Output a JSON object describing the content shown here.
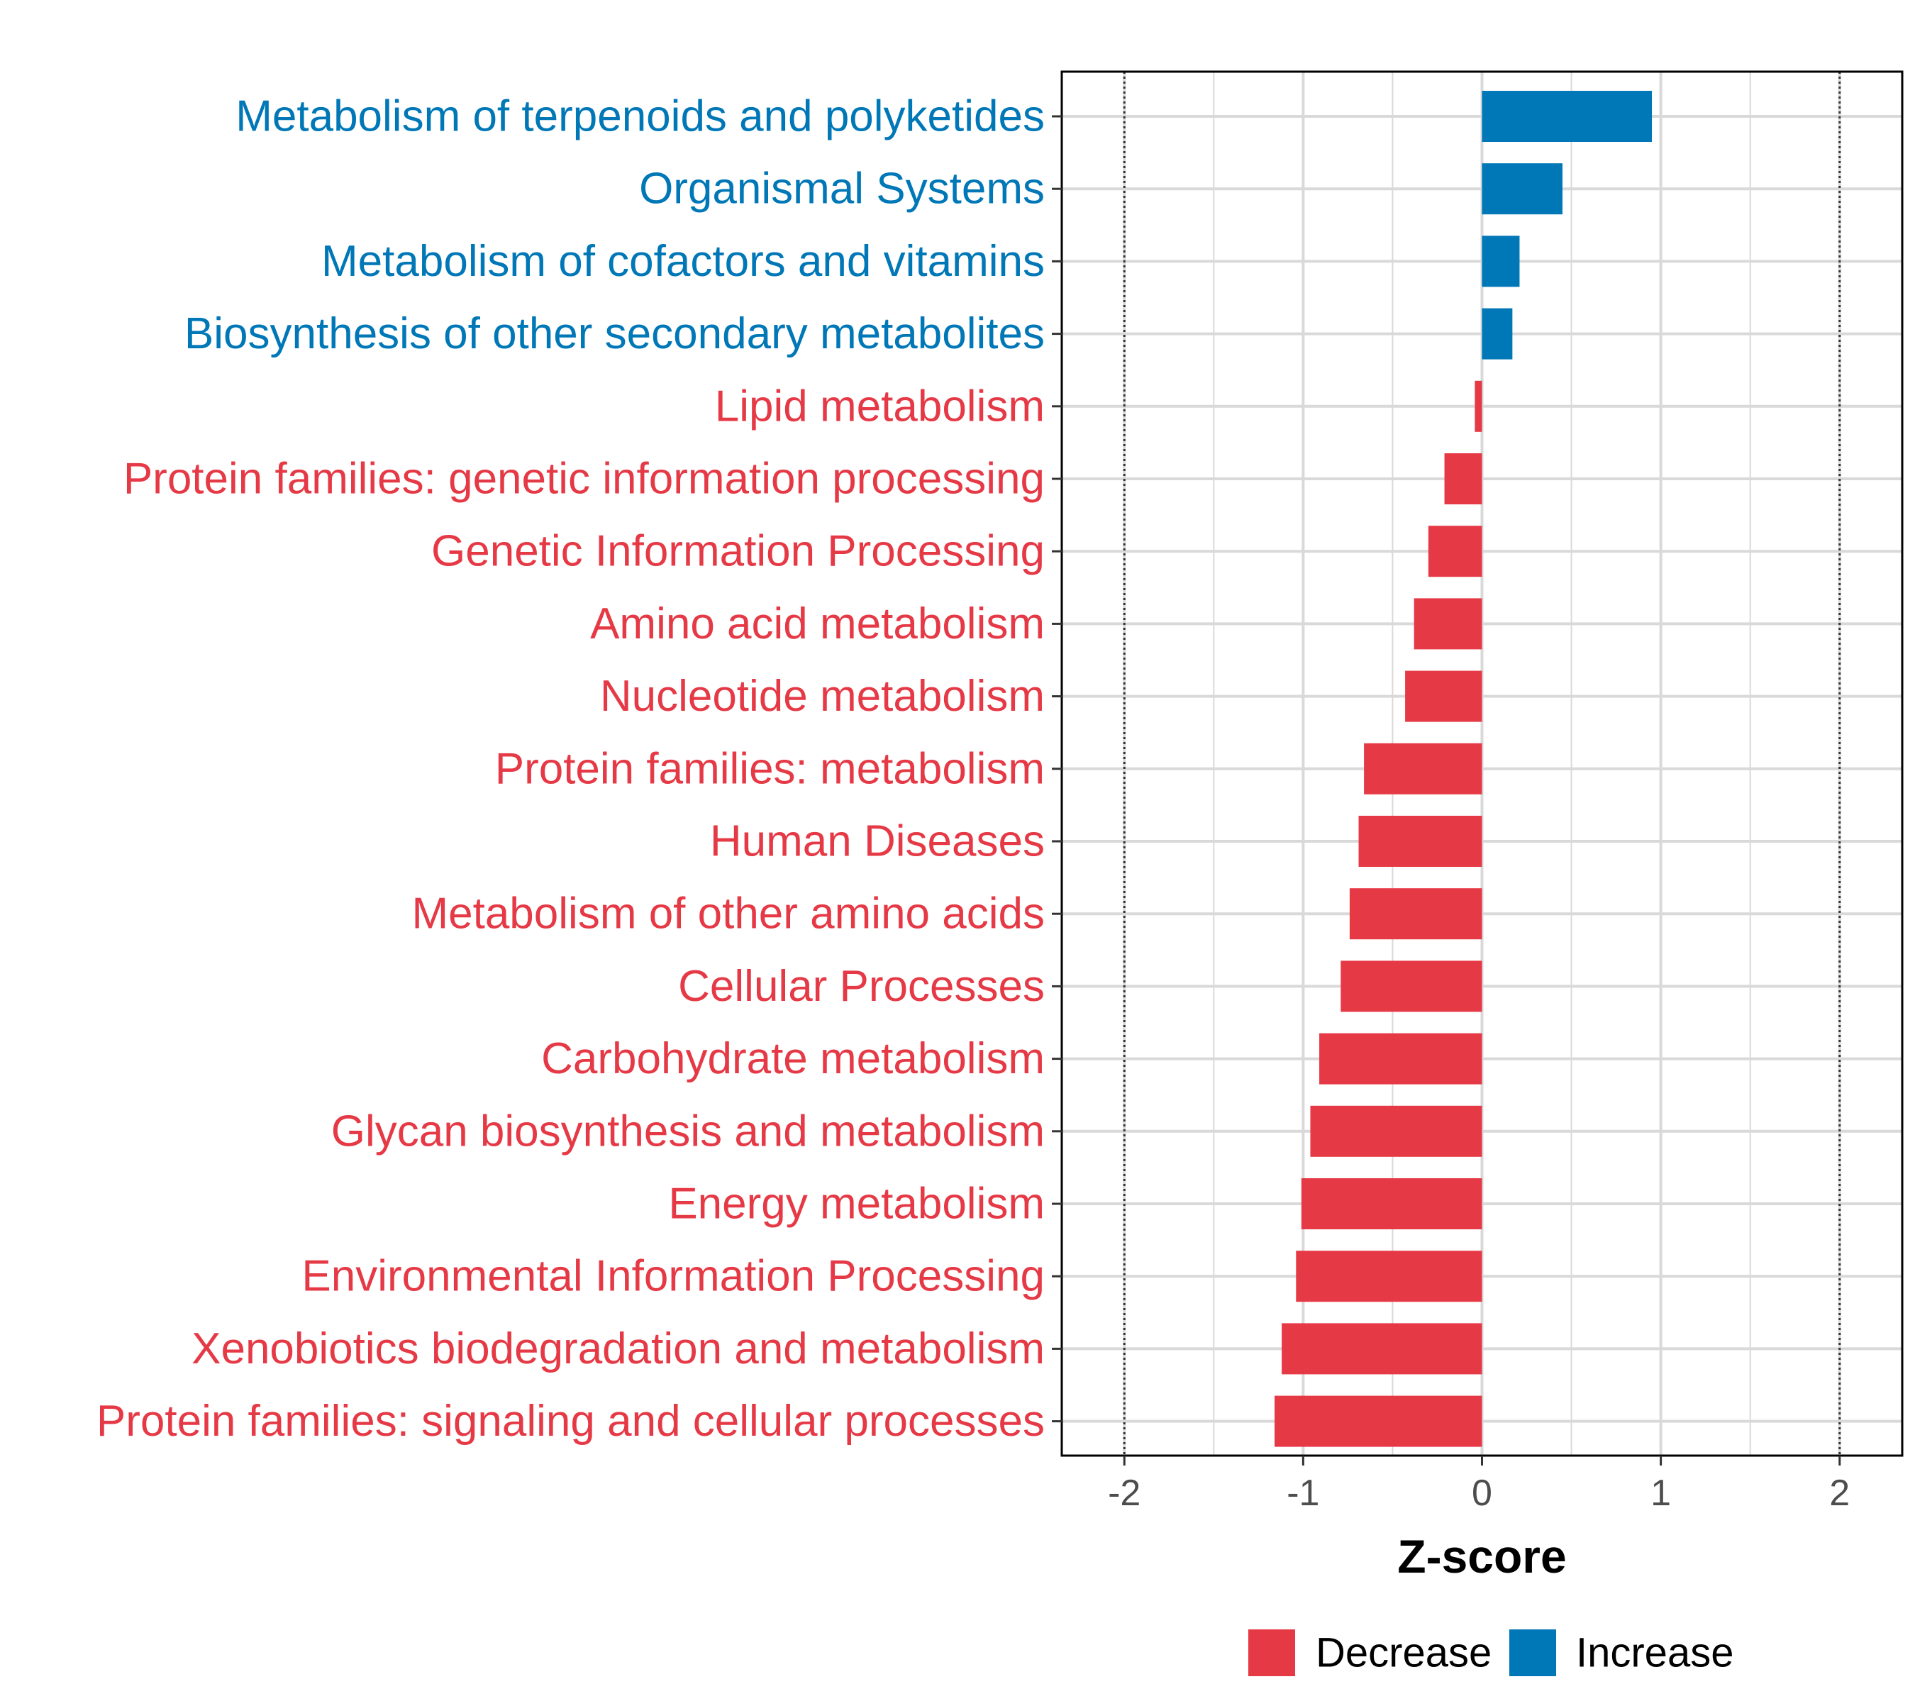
{
  "chart_data": {
    "type": "bar",
    "orientation": "horizontal",
    "xlabel": "Z-score",
    "xlim": [
      -2.35,
      2.35
    ],
    "x_ticks": [
      -2,
      -1,
      0,
      1,
      2
    ],
    "x_tick_labels": [
      "-2",
      "-1",
      "0",
      "1",
      "2"
    ],
    "reference_lines": [
      -2,
      2
    ],
    "grid": true,
    "legend_position": "bottom",
    "legend": [
      {
        "name": "Decrease",
        "color": "#E63946"
      },
      {
        "name": "Increase",
        "color": "#0077B6"
      }
    ],
    "categories": [
      "Metabolism of terpenoids and polyketides",
      "Organismal Systems",
      "Metabolism of cofactors and vitamins",
      "Biosynthesis of other secondary metabolites",
      "Lipid metabolism",
      "Protein families: genetic information processing",
      "Genetic Information Processing",
      "Amino acid metabolism",
      "Nucleotide metabolism",
      "Protein families: metabolism",
      "Human Diseases",
      "Metabolism of other amino acids",
      "Cellular Processes",
      "Carbohydrate metabolism",
      "Glycan biosynthesis and metabolism",
      "Energy metabolism",
      "Environmental Information Processing",
      "Xenobiotics biodegradation and metabolism",
      "Protein families: signaling and cellular processes"
    ],
    "values": [
      0.95,
      0.45,
      0.21,
      0.17,
      -0.04,
      -0.21,
      -0.3,
      -0.38,
      -0.43,
      -0.66,
      -0.69,
      -0.74,
      -0.79,
      -0.91,
      -0.96,
      -1.01,
      -1.04,
      -1.12,
      -1.16
    ],
    "groups": [
      "Increase",
      "Increase",
      "Increase",
      "Increase",
      "Decrease",
      "Decrease",
      "Decrease",
      "Decrease",
      "Decrease",
      "Decrease",
      "Decrease",
      "Decrease",
      "Decrease",
      "Decrease",
      "Decrease",
      "Decrease",
      "Decrease",
      "Decrease",
      "Decrease"
    ]
  }
}
